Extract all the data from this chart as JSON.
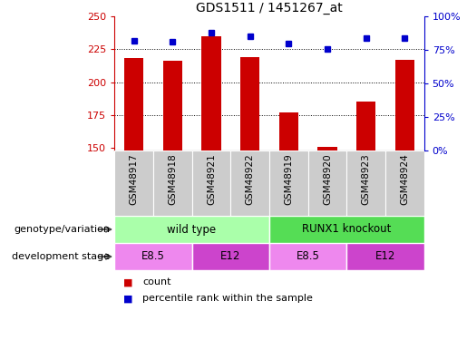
{
  "title": "GDS1511 / 1451267_at",
  "samples": [
    "GSM48917",
    "GSM48918",
    "GSM48921",
    "GSM48922",
    "GSM48919",
    "GSM48920",
    "GSM48923",
    "GSM48924"
  ],
  "counts": [
    218,
    216,
    235,
    219,
    177,
    151,
    185,
    217
  ],
  "percentiles": [
    82,
    81,
    88,
    85,
    80,
    76,
    84,
    84
  ],
  "ylim_left": [
    148,
    250
  ],
  "ylim_right": [
    0,
    100
  ],
  "yticks_left": [
    150,
    175,
    200,
    225,
    250
  ],
  "yticks_right": [
    0,
    25,
    50,
    75,
    100
  ],
  "bar_color": "#cc0000",
  "dot_color": "#0000cc",
  "bar_width": 0.5,
  "genotype_groups": [
    {
      "label": "wild type",
      "start": 0,
      "end": 4,
      "color": "#aaffaa"
    },
    {
      "label": "RUNX1 knockout",
      "start": 4,
      "end": 8,
      "color": "#55dd55"
    }
  ],
  "stage_groups": [
    {
      "label": "E8.5",
      "start": 0,
      "end": 2,
      "color": "#ee88ee"
    },
    {
      "label": "E12",
      "start": 2,
      "end": 4,
      "color": "#cc44cc"
    },
    {
      "label": "E8.5",
      "start": 4,
      "end": 6,
      "color": "#ee88ee"
    },
    {
      "label": "E12",
      "start": 6,
      "end": 8,
      "color": "#cc44cc"
    }
  ],
  "left_label_color": "#cc0000",
  "right_label_color": "#0000cc",
  "sample_bg_color": "#cccccc",
  "legend_count_color": "#cc0000",
  "legend_pct_color": "#0000cc"
}
